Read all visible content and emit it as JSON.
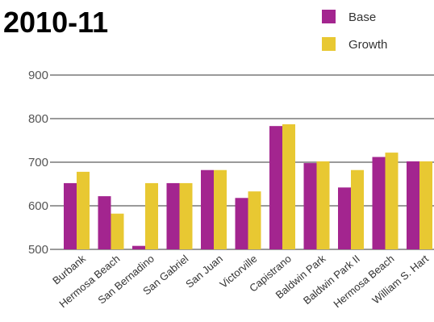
{
  "chart_data": {
    "type": "bar",
    "title": "2010-11",
    "xlabel": "",
    "ylabel": "",
    "ylim": [
      500,
      900
    ],
    "yticks": [
      500,
      600,
      700,
      800,
      900
    ],
    "grid": true,
    "legend_position": "top-right",
    "categories": [
      "Burbank",
      "Hermosa Beach",
      "San Bernadino",
      "San Gabriel",
      "San Juan",
      "Victorville",
      "Capistrano",
      "Baldwin Park",
      "Baldwin Park II",
      "Hermosa Beach",
      "William S. Hart"
    ],
    "series": [
      {
        "name": "Base",
        "color": "#a3258f",
        "values": [
          652,
          622,
          508,
          652,
          682,
          618,
          783,
          698,
          642,
          712,
          702
        ]
      },
      {
        "name": "Growth",
        "color": "#e8c832",
        "values": [
          678,
          582,
          652,
          652,
          682,
          633,
          787,
          702,
          682,
          722,
          702
        ]
      }
    ]
  }
}
